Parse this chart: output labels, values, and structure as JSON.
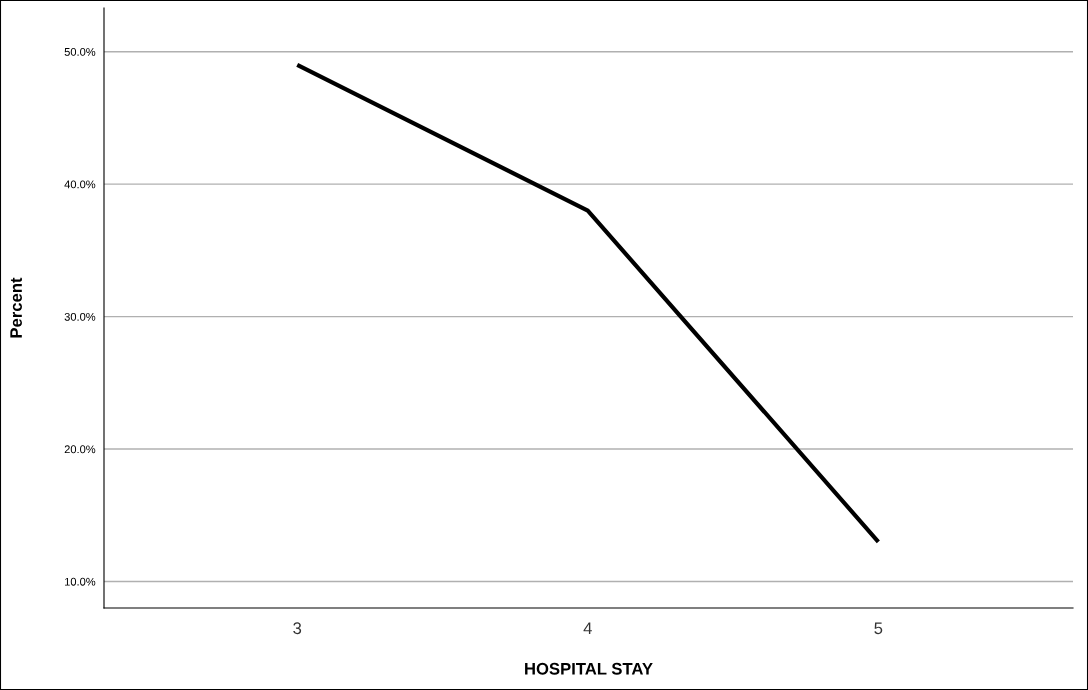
{
  "chart_data": {
    "type": "line",
    "xlabel": "HOSPITAL STAY",
    "ylabel": "Percent",
    "categories": [
      "3",
      "4",
      "5"
    ],
    "series": [
      {
        "color": "#000000",
        "values": [
          49.0,
          38.0,
          13.0
        ]
      }
    ],
    "ylim": [
      8,
      53.3
    ],
    "yticks": [
      {
        "value": 10,
        "label": "10.0%"
      },
      {
        "value": 20,
        "label": "20.0%"
      },
      {
        "value": 30,
        "label": "30.0%"
      },
      {
        "value": 40,
        "label": "40.0%"
      },
      {
        "value": 50,
        "label": "50.0%"
      }
    ],
    "grid": "y",
    "marker": "none",
    "line_style": "solid"
  }
}
